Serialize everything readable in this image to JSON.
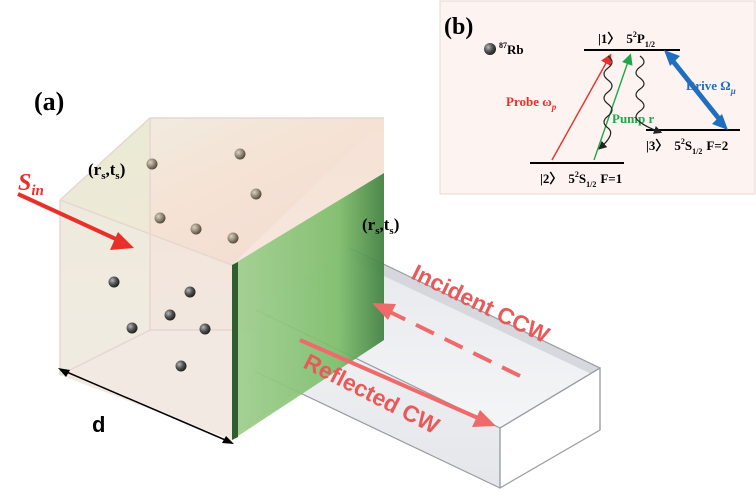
{
  "panel_a": {
    "label": "(a)",
    "input_label_main": "S",
    "input_label_sub": "in",
    "corner_label_left": "(r",
    "corner_label_left_sub": "s",
    "corner_label_left_tail": ",t",
    "corner_label_left_sub2": "s",
    "corner_label_left_close": ")",
    "corner_label_right": "(r",
    "corner_label_right_sub": "s",
    "corner_label_right_tail": ",t",
    "corner_label_right_sub2": "s",
    "corner_label_right_close": ")",
    "dimension_label": "d",
    "incident_label": "Incident CCW",
    "reflected_label": "Reflected CW"
  },
  "panel_b": {
    "label": "(b)",
    "atom_label_sup": "87",
    "atom_label": "Rb",
    "level1_ket": "|1〉",
    "level1_term": "5",
    "level1_term_sup": "2",
    "level1_term_P": "P",
    "level1_term_sub": "1/2",
    "level2_ket": "|2〉",
    "level2_term": "5",
    "level2_term_sup": "2",
    "level2_term_S": "S",
    "level2_term_sub": "1/2",
    "level2_f": "F=1",
    "level3_ket": "|3〉",
    "level3_term": "5",
    "level3_term_sup": "2",
    "level3_term_S": "S",
    "level3_term_sub": "1/2",
    "level3_f": "F=2",
    "probe_label": "Probe ω",
    "probe_sub": "p",
    "pump_label": "Pump r",
    "drive_label": "Drive Ω",
    "drive_sub": "μ"
  },
  "colors": {
    "probe": "#e8302a",
    "pump": "#1fa64a",
    "drive": "#1f6fc0",
    "waveguide_text": "#e85a5a",
    "mirror": "#5aa85a",
    "inset_bg": "#fdf3f1"
  }
}
